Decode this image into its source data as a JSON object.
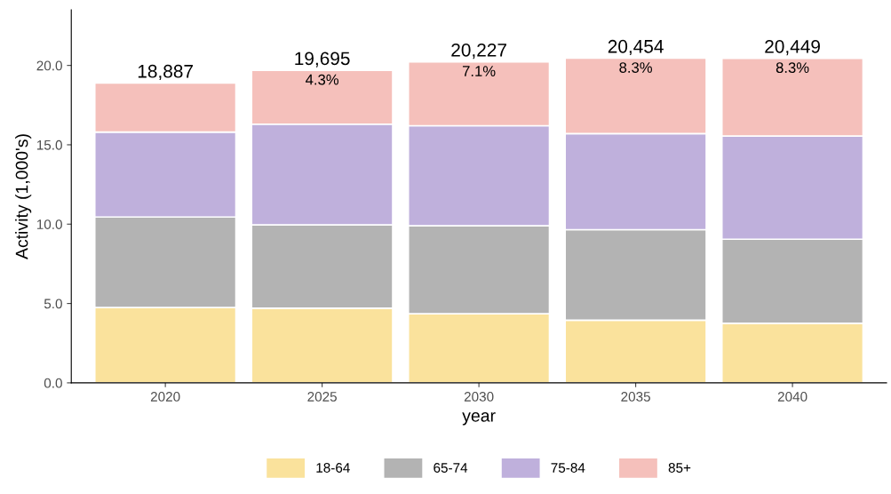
{
  "chart_data": {
    "type": "bar",
    "stacked": true,
    "xlabel": "year",
    "ylabel": "Activity (1,000's)",
    "categories": [
      "2020",
      "2025",
      "2030",
      "2035",
      "2040"
    ],
    "series": [
      {
        "name": "18-64",
        "color": "#fae29c",
        "values": [
          4.75,
          4.7,
          4.35,
          3.95,
          3.75
        ]
      },
      {
        "name": "65-74",
        "color": "#b3b3b3",
        "values": [
          5.7,
          5.25,
          5.55,
          5.7,
          5.3
        ]
      },
      {
        "name": "75-84",
        "color": "#bfb0dc",
        "values": [
          5.35,
          6.35,
          6.3,
          6.05,
          6.5
        ]
      },
      {
        "name": "85+",
        "color": "#f5c0bb",
        "values": [
          3.087,
          3.395,
          4.027,
          4.754,
          4.899
        ]
      }
    ],
    "totals": [
      "18,887",
      "19,695",
      "20,227",
      "20,454",
      "20,449"
    ],
    "annotations": [
      {
        "text": "4.3%",
        "x": "2025",
        "y": 19.695
      },
      {
        "text": "7.1%",
        "x": "2030",
        "y": 20.227
      },
      {
        "text": "8.3%",
        "x": "2035",
        "y": 20.454
      },
      {
        "text": "8.3%",
        "x": "2040",
        "y": 20.449
      }
    ],
    "ylim": [
      0,
      23.5
    ],
    "yticks": [
      {
        "value": 0,
        "label": "0.0"
      },
      {
        "value": 5,
        "label": "5.0"
      },
      {
        "value": 10,
        "label": "10.0"
      },
      {
        "value": 15,
        "label": "15.0"
      },
      {
        "value": 20,
        "label": "20.0"
      }
    ],
    "grid": false,
    "legend": "bottom"
  }
}
